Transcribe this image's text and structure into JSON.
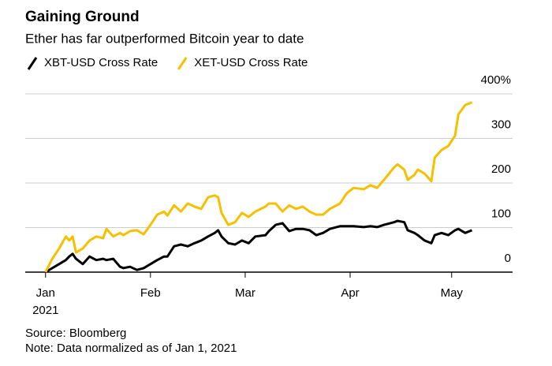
{
  "chart_data": {
    "type": "line",
    "title": "Gaining Ground",
    "subtitle": "Ether has far outperformed Bitcoin year to date",
    "source": "Source: Bloomberg",
    "note": "Note: Data normalized as of Jan 1, 2021",
    "x": [
      0,
      2,
      4,
      6,
      7,
      8,
      9,
      11,
      13,
      15,
      17,
      18,
      20,
      22,
      23,
      25,
      27,
      29,
      31,
      33,
      35,
      36,
      38,
      40,
      42,
      44,
      46,
      48,
      50,
      51,
      52,
      54,
      56,
      58,
      60,
      62,
      65,
      66,
      68,
      70,
      72,
      74,
      76,
      78,
      80,
      82,
      84,
      87,
      89,
      91,
      94,
      96,
      98,
      100,
      103,
      104,
      106,
      107,
      109,
      110,
      112,
      114,
      115,
      117,
      119,
      121,
      122,
      124,
      126
    ],
    "series": [
      {
        "name": "XBT-USD Cross Rate",
        "color": "#000000",
        "values": [
          0,
          9,
          18,
          27,
          35,
          41,
          30,
          18,
          35,
          27,
          30,
          27,
          30,
          12,
          9,
          12,
          5,
          9,
          18,
          27,
          35,
          35,
          58,
          62,
          58,
          65,
          71,
          80,
          88,
          94,
          80,
          65,
          62,
          71,
          65,
          80,
          83,
          92,
          106,
          110,
          92,
          97,
          97,
          94,
          83,
          88,
          97,
          103,
          103,
          103,
          101,
          103,
          101,
          106,
          112,
          115,
          112,
          94,
          88,
          83,
          71,
          65,
          83,
          88,
          83,
          94,
          97,
          88,
          94
        ]
      },
      {
        "name": "XET-USD Cross Rate",
        "color": "#f5c000",
        "values": [
          0,
          30,
          53,
          80,
          71,
          80,
          44,
          53,
          71,
          80,
          76,
          97,
          80,
          88,
          83,
          92,
          94,
          85,
          106,
          129,
          136,
          127,
          150,
          136,
          154,
          147,
          142,
          168,
          172,
          168,
          133,
          106,
          112,
          133,
          124,
          136,
          147,
          154,
          154,
          136,
          150,
          142,
          147,
          136,
          129,
          129,
          142,
          154,
          177,
          189,
          186,
          195,
          189,
          207,
          235,
          242,
          230,
          207,
          218,
          230,
          221,
          204,
          257,
          274,
          283,
          306,
          354,
          375,
          381
        ]
      }
    ],
    "xlim": [
      -6,
      138
    ],
    "xticks": [
      {
        "value": 0,
        "label": "Jan"
      },
      {
        "value": 31,
        "label": "Feb"
      },
      {
        "value": 59,
        "label": "Mar"
      },
      {
        "value": 90,
        "label": "Apr"
      },
      {
        "value": 120,
        "label": "May"
      }
    ],
    "xtick_year": "2021",
    "ylim": [
      0,
      400
    ],
    "yticks": [
      0,
      100,
      200,
      300,
      {
        "value": 400,
        "label": "400%"
      }
    ],
    "grid": true,
    "legend": "top-left"
  }
}
